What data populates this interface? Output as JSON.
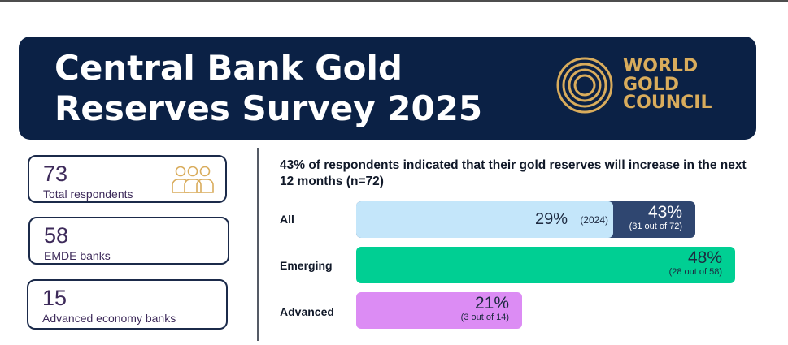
{
  "header": {
    "title_line1": "Central Bank Gold",
    "title_line2": "Reserves Survey 2025",
    "logo_line1": "WORLD",
    "logo_line2": "GOLD",
    "logo_line3": "COUNCIL"
  },
  "stats": [
    {
      "value": "73",
      "label": "Total respondents"
    },
    {
      "value": "58",
      "label": "EMDE banks"
    },
    {
      "value": "15",
      "label": "Advanced economy banks"
    }
  ],
  "colors": {
    "banner": "#0b2145",
    "gold": "#d9ac5c",
    "all_2024": "#c4e6fa",
    "all_2025": "#2f4670",
    "emerging": "#00cf93",
    "advanced": "#dc8cf4"
  },
  "chart_data": {
    "type": "bar",
    "orientation": "horizontal",
    "title": "43% of respondents indicated that their gold reserves will increase in the next 12 months (n=72)",
    "categories": [
      "All",
      "Emerging",
      "Advanced"
    ],
    "unit": "%",
    "xlim": [
      0,
      48
    ],
    "series": [
      {
        "name": "2025",
        "values": [
          43,
          48,
          21
        ],
        "value_labels": [
          "43%",
          "48%",
          "21%"
        ],
        "sub_labels": [
          "(31 out of 72)",
          "(28 out of 58)",
          "(3 out of 14)"
        ]
      },
      {
        "name": "2024",
        "values": [
          29,
          null,
          null
        ],
        "value_labels": [
          "29%",
          null,
          null
        ],
        "sub_labels": [
          "(2024)",
          null,
          null
        ]
      }
    ]
  }
}
